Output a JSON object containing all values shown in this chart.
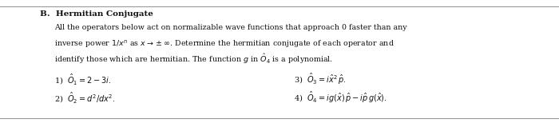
{
  "title": "B.  Hermitian Conjugate",
  "body_line1": "All the operators below act on normalizable wave functions that approach 0 faster than any",
  "body_line2": "inverse power $1/x^n$ as $x \\rightarrow \\pm\\infty$. Determine the hermitian conjugate of each operator and",
  "body_line3": "identify those which are hermitian. The function $g$ in $\\hat{O}_4$ is a polynomial.",
  "item1": "1)  $\\hat{O}_1 = 2 - 3i.$",
  "item2": "2)  $\\hat{O}_2 = d^2/dx^2.$",
  "item3": "3)  $\\hat{O}_3 = i\\hat{x}^2\\, \\hat{p}.$",
  "item4": "4)  $\\hat{O}_4 = ig(\\hat{x})\\, \\hat{p} -i\\hat{p}\\, g(\\hat{x}).$",
  "bg_color": "#ffffff",
  "text_color": "#111111",
  "title_fontsize": 7.5,
  "body_fontsize": 6.8,
  "item_fontsize": 7.0,
  "top_line_color": "#999999",
  "bottom_line_color": "#999999"
}
